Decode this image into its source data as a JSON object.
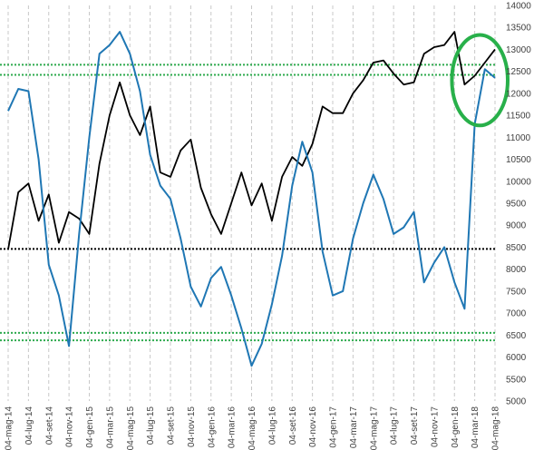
{
  "chart_data": {
    "type": "line",
    "title": "",
    "xlabel": "",
    "ylabel": "",
    "ylim": [
      5000,
      14000
    ],
    "y_ticks": [
      14000,
      13500,
      13000,
      12500,
      12000,
      11500,
      11000,
      10500,
      10000,
      9500,
      9000,
      8500,
      8000,
      7500,
      7000,
      6500,
      6000,
      5500,
      5000
    ],
    "y_tick_labels": [
      "14000",
      "13500",
      "13000",
      "12500",
      "12000",
      "11500",
      "11000",
      "10500",
      "10000",
      "9500",
      "9000",
      "8500",
      "8000",
      "7500",
      "7000",
      "6500",
      "6000",
      "5500",
      "5000"
    ],
    "x_tick_labels": [
      "04-mag-14",
      "04-lug-14",
      "04-set-14",
      "04-nov-14",
      "04-gen-15",
      "04-mar-15",
      "04-mag-15",
      "04-lug-15",
      "04-set-15",
      "04-nov-15",
      "04-gen-16",
      "04-mar-16",
      "04-mag-16",
      "04-lug-16",
      "04-set-16",
      "04-nov-16",
      "04-gen-17",
      "04-mar-17",
      "04-mag-17",
      "04-lug-17",
      "04-set-17",
      "04-nov-17",
      "04-gen-18",
      "04-mar-18",
      "04-mag-18"
    ],
    "grid": "vertical dashed",
    "reference_lines": [
      {
        "y": 12650,
        "color": "#2eaa4e",
        "style": "dotted"
      },
      {
        "y": 12420,
        "color": "#2eaa4e",
        "style": "dotted"
      },
      {
        "y": 8460,
        "color": "#000000",
        "style": "dotted"
      },
      {
        "y": 6550,
        "color": "#2eaa4e",
        "style": "dotted"
      },
      {
        "y": 6380,
        "color": "#2eaa4e",
        "style": "dotted"
      }
    ],
    "highlight": {
      "shape": "circle",
      "color": "#28b04a",
      "x_range": [
        "04-feb-18",
        "04-mag-18"
      ],
      "y_range": [
        11600,
        13000
      ]
    },
    "series": [
      {
        "color": "#000000",
        "points": [
          [
            "04-mag-14",
            8450
          ],
          [
            "04-giu-14",
            9750
          ],
          [
            "04-lug-14",
            9950
          ],
          [
            "04-ago-14",
            9100
          ],
          [
            "04-set-14",
            9700
          ],
          [
            "04-ott-14",
            8600
          ],
          [
            "04-nov-14",
            9300
          ],
          [
            "04-dic-14",
            9150
          ],
          [
            "04-gen-15",
            8800
          ],
          [
            "04-feb-15",
            10400
          ],
          [
            "04-mar-15",
            11500
          ],
          [
            "04-apr-15",
            12250
          ],
          [
            "04-mag-15",
            11500
          ],
          [
            "04-giu-15",
            11050
          ],
          [
            "04-lug-15",
            11700
          ],
          [
            "04-ago-15",
            10200
          ],
          [
            "04-set-15",
            10100
          ],
          [
            "04-ott-15",
            10700
          ],
          [
            "04-nov-15",
            10950
          ],
          [
            "04-dic-15",
            9850
          ],
          [
            "04-gen-16",
            9250
          ],
          [
            "04-feb-16",
            8800
          ],
          [
            "04-mar-16",
            9500
          ],
          [
            "04-apr-16",
            10200
          ],
          [
            "04-mag-16",
            9450
          ],
          [
            "04-giu-16",
            9950
          ],
          [
            "04-lug-16",
            9100
          ],
          [
            "04-ago-16",
            10100
          ],
          [
            "04-set-16",
            10550
          ],
          [
            "04-ott-16",
            10350
          ],
          [
            "04-nov-16",
            10850
          ],
          [
            "04-dic-16",
            11700
          ],
          [
            "04-gen-17",
            11550
          ],
          [
            "04-feb-17",
            11550
          ],
          [
            "04-mar-17",
            12000
          ],
          [
            "04-apr-17",
            12300
          ],
          [
            "04-mag-17",
            12700
          ],
          [
            "04-giu-17",
            12750
          ],
          [
            "04-lug-17",
            12450
          ],
          [
            "04-ago-17",
            12200
          ],
          [
            "04-set-17",
            12250
          ],
          [
            "04-ott-17",
            12900
          ],
          [
            "04-nov-17",
            13050
          ],
          [
            "04-dic-17",
            13100
          ],
          [
            "04-gen-18",
            13400
          ],
          [
            "04-feb-18",
            12200
          ],
          [
            "04-mar-18",
            12400
          ],
          [
            "04-apr-18",
            12700
          ],
          [
            "04-mag-18",
            13000
          ]
        ]
      },
      {
        "color": "#1f77b4",
        "points": [
          [
            "04-mag-14",
            11600
          ],
          [
            "04-giu-14",
            12100
          ],
          [
            "04-lug-14",
            12050
          ],
          [
            "04-ago-14",
            10500
          ],
          [
            "04-set-14",
            8100
          ],
          [
            "04-ott-14",
            7400
          ],
          [
            "04-nov-14",
            6250
          ],
          [
            "04-dic-14",
            8800
          ],
          [
            "04-gen-15",
            11000
          ],
          [
            "04-feb-15",
            12900
          ],
          [
            "04-mar-15",
            13100
          ],
          [
            "04-apr-15",
            13400
          ],
          [
            "04-mag-15",
            12900
          ],
          [
            "04-giu-15",
            12050
          ],
          [
            "04-lug-15",
            10600
          ],
          [
            "04-ago-15",
            9900
          ],
          [
            "04-set-15",
            9600
          ],
          [
            "04-ott-15",
            8700
          ],
          [
            "04-nov-15",
            7600
          ],
          [
            "04-dic-15",
            7150
          ],
          [
            "04-gen-16",
            7800
          ],
          [
            "04-feb-16",
            8050
          ],
          [
            "04-mar-16",
            7400
          ],
          [
            "04-apr-16",
            6650
          ],
          [
            "04-mag-16",
            5800
          ],
          [
            "04-giu-16",
            6300
          ],
          [
            "04-lug-16",
            7200
          ],
          [
            "04-ago-16",
            8300
          ],
          [
            "04-set-16",
            9900
          ],
          [
            "04-ott-16",
            10900
          ],
          [
            "04-nov-16",
            10200
          ],
          [
            "04-dic-16",
            8400
          ],
          [
            "04-gen-17",
            7400
          ],
          [
            "04-feb-17",
            7500
          ],
          [
            "04-mar-17",
            8700
          ],
          [
            "04-apr-17",
            9500
          ],
          [
            "04-mag-17",
            10150
          ],
          [
            "04-giu-17",
            9600
          ],
          [
            "04-lug-17",
            8800
          ],
          [
            "04-ago-17",
            8950
          ],
          [
            "04-set-17",
            9300
          ],
          [
            "04-ott-17",
            7700
          ],
          [
            "04-nov-17",
            8150
          ],
          [
            "04-dic-17",
            8500
          ],
          [
            "04-gen-18",
            7700
          ],
          [
            "04-feb-18",
            7100
          ],
          [
            "04-mar-18",
            11300
          ],
          [
            "04-apr-18",
            12550
          ],
          [
            "04-mag-18",
            12350
          ]
        ]
      }
    ]
  }
}
